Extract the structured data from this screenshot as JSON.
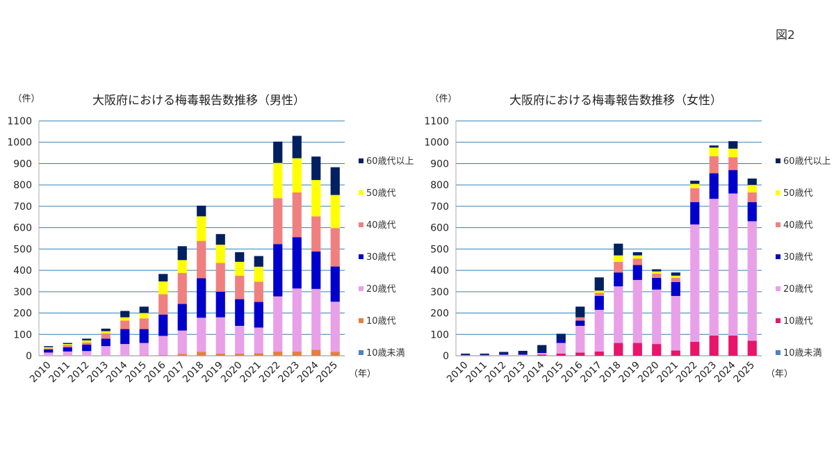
{
  "figure_label": "図2",
  "chart_data": [
    {
      "type": "bar",
      "stacked": true,
      "title": "大阪府における梅毒報告数推移（男性）",
      "ylabel": "（件）",
      "xlabel": "（年）",
      "ylim": [
        0,
        1100
      ],
      "yticks": [
        0,
        100,
        200,
        300,
        400,
        500,
        600,
        700,
        800,
        900,
        1000,
        1100
      ],
      "grid": true,
      "legend_position": "right",
      "categories": [
        "2010",
        "2011",
        "2012",
        "2013",
        "2014",
        "2015",
        "2016",
        "2017",
        "2018",
        "2019",
        "2020",
        "2021",
        "2022",
        "2023",
        "2024",
        "2025"
      ],
      "series": [
        {
          "name": "10歳未満",
          "color": "#4f81bd",
          "values": [
            0,
            0,
            0,
            0,
            0,
            0,
            0,
            0,
            0,
            0,
            0,
            0,
            0,
            0,
            0,
            0
          ]
        },
        {
          "name": "10歳代",
          "color": "#e57f3f",
          "values": [
            0,
            0,
            0,
            0,
            0,
            2,
            3,
            8,
            18,
            10,
            10,
            12,
            20,
            20,
            28,
            18
          ]
        },
        {
          "name": "20歳代",
          "color": "#e8a0e8",
          "values": [
            15,
            20,
            22,
            45,
            55,
            58,
            90,
            110,
            160,
            170,
            130,
            120,
            258,
            295,
            285,
            235
          ]
        },
        {
          "name": "30歳代",
          "color": "#0000cc",
          "values": [
            15,
            20,
            30,
            35,
            70,
            65,
            100,
            125,
            185,
            120,
            125,
            120,
            245,
            240,
            175,
            165
          ]
        },
        {
          "name": "40歳代",
          "color": "#f08080",
          "values": [
            5,
            10,
            10,
            25,
            40,
            50,
            95,
            145,
            175,
            135,
            110,
            95,
            215,
            210,
            165,
            180
          ]
        },
        {
          "name": "50歳代",
          "color": "#ffff00",
          "values": [
            5,
            5,
            10,
            10,
            15,
            25,
            60,
            60,
            115,
            85,
            65,
            70,
            165,
            160,
            170,
            155
          ]
        },
        {
          "name": "60歳代以上",
          "color": "#002060",
          "values": [
            5,
            5,
            8,
            12,
            30,
            30,
            35,
            65,
            50,
            50,
            45,
            50,
            100,
            105,
            110,
            130
          ]
        }
      ]
    },
    {
      "type": "bar",
      "stacked": true,
      "title": "大阪府における梅毒報告数推移（女性）",
      "ylabel": "（件）",
      "xlabel": "（年）",
      "ylim": [
        0,
        1100
      ],
      "yticks": [
        0,
        100,
        200,
        300,
        400,
        500,
        600,
        700,
        800,
        900,
        1000,
        1100
      ],
      "grid": true,
      "legend_position": "right",
      "categories": [
        "2010",
        "2011",
        "2012",
        "2013",
        "2014",
        "2015",
        "2016",
        "2017",
        "2018",
        "2019",
        "2020",
        "2021",
        "2022",
        "2023",
        "2024",
        "2025"
      ],
      "series": [
        {
          "name": "10歳未満",
          "color": "#4f81bd",
          "values": [
            0,
            0,
            0,
            0,
            0,
            0,
            0,
            0,
            0,
            0,
            0,
            0,
            0,
            0,
            0,
            0
          ]
        },
        {
          "name": "10歳代",
          "color": "#e8156a",
          "values": [
            0,
            0,
            0,
            0,
            5,
            10,
            15,
            20,
            60,
            60,
            55,
            25,
            65,
            95,
            95,
            70
          ]
        },
        {
          "name": "20歳代",
          "color": "#e8a0e8",
          "values": [
            2,
            2,
            5,
            5,
            8,
            50,
            125,
            195,
            265,
            295,
            255,
            255,
            550,
            640,
            665,
            560
          ]
        },
        {
          "name": "30歳代",
          "color": "#0000cc",
          "values": [
            2,
            2,
            5,
            5,
            5,
            15,
            25,
            65,
            65,
            70,
            55,
            65,
            105,
            120,
            110,
            90
          ]
        },
        {
          "name": "40歳代",
          "color": "#f08080",
          "values": [
            0,
            0,
            0,
            0,
            0,
            0,
            15,
            15,
            50,
            30,
            20,
            20,
            65,
            80,
            60,
            45
          ]
        },
        {
          "name": "50歳代",
          "color": "#ffff00",
          "values": [
            0,
            0,
            0,
            0,
            0,
            0,
            0,
            10,
            30,
            15,
            10,
            10,
            20,
            40,
            40,
            35
          ]
        },
        {
          "name": "60歳代以上",
          "color": "#002060",
          "values": [
            6,
            6,
            8,
            13,
            32,
            28,
            50,
            62,
            55,
            15,
            10,
            15,
            15,
            10,
            35,
            30
          ]
        }
      ]
    }
  ]
}
